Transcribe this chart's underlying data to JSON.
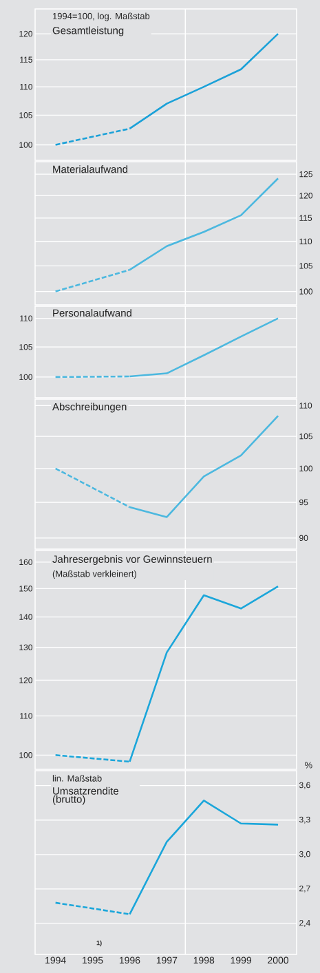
{
  "chart_data": [
    {
      "type": "line",
      "title": "Gesamtleistung",
      "annotations": [
        "1994=100, log. Maßstab"
      ],
      "log": true,
      "grid": "y",
      "tick_labels": "y",
      "xlim": [
        1993.45,
        2000.5
      ],
      "ylim": [
        97.5,
        125
      ],
      "yticks": [
        100,
        105,
        110,
        115,
        120
      ],
      "ref_lines": [
        {
          "axis": "x",
          "value": 1997.5,
          "color": "#ffffff"
        }
      ],
      "series": [
        {
          "color": "#1ba1d8",
          "line_style": "dashed",
          "x": [
            1994,
            1996
          ],
          "values": [
            100,
            102.7
          ]
        },
        {
          "color": "#1ba1d8",
          "line_style": "solid",
          "x": [
            1996,
            1997,
            1998,
            1999,
            2000
          ],
          "values": [
            102.7,
            107,
            110,
            113.2,
            120
          ]
        }
      ]
    },
    {
      "type": "line",
      "title": "Materialaufwand",
      "log": "y2",
      "grid": "y",
      "tick_labels": "y",
      "xlim": [
        1993.45,
        2000.5
      ],
      "y2lim": [
        97.5,
        128
      ],
      "y2ticks": [
        100,
        105,
        110,
        115,
        120,
        125
      ],
      "ref_lines": [
        {
          "axis": "x",
          "value": 1997.5,
          "color": "#ffffff"
        }
      ],
      "series": [
        {
          "color": "#4cb8df",
          "line_style": "dashed",
          "axis": "y2",
          "x": [
            1994,
            1996
          ],
          "values": [
            100,
            104.2
          ]
        },
        {
          "color": "#4cb8df",
          "line_style": "solid",
          "axis": "y2",
          "x": [
            1996,
            1997,
            1998,
            1999,
            2000
          ],
          "values": [
            104.2,
            109,
            112,
            115.6,
            124
          ]
        }
      ]
    },
    {
      "type": "line",
      "title": "Personalaufwand",
      "log": true,
      "grid": "y",
      "tick_labels": "y",
      "xlim": [
        1993.45,
        2000.5
      ],
      "ylim": [
        96.7,
        112.2
      ],
      "yticks": [
        100,
        105,
        110
      ],
      "ref_lines": [
        {
          "axis": "x",
          "value": 1997.5,
          "color": "#ffffff"
        }
      ],
      "series": [
        {
          "color": "#4cb8df",
          "line_style": "dashed",
          "x": [
            1994,
            1996
          ],
          "values": [
            100,
            100.1
          ]
        },
        {
          "color": "#4cb8df",
          "line_style": "solid",
          "x": [
            1996,
            1997,
            1998,
            1999,
            2000
          ],
          "values": [
            100.1,
            100.6,
            103.6,
            106.8,
            110
          ]
        }
      ]
    },
    {
      "type": "line",
      "title": "Abschreibungen",
      "log": "y2",
      "grid": "y",
      "tick_labels": "y",
      "xlim": [
        1993.45,
        2000.5
      ],
      "y2lim": [
        88.5,
        111.1
      ],
      "y2ticks": [
        90,
        95,
        100,
        105,
        110
      ],
      "ref_lines": [
        {
          "axis": "x",
          "value": 1997.5,
          "color": "#ffffff"
        }
      ],
      "series": [
        {
          "color": "#4cb8df",
          "line_style": "dashed",
          "axis": "y2",
          "x": [
            1994,
            1996
          ],
          "values": [
            100,
            94.3
          ]
        },
        {
          "color": "#4cb8df",
          "line_style": "solid",
          "axis": "y2",
          "x": [
            1996,
            1997,
            1998,
            1999,
            2000
          ],
          "values": [
            94.3,
            92.9,
            98.8,
            102,
            108.3
          ]
        }
      ]
    },
    {
      "type": "line",
      "title": "Jahresergebnis vor Gewinnsteuern",
      "subtitle": "(Maßstab verkleinert)",
      "log": true,
      "grid": "y",
      "tick_labels": "y",
      "xlim": [
        1993.45,
        2000.5
      ],
      "ylim": [
        96.6,
        164.6
      ],
      "yticks": [
        100,
        110,
        120,
        130,
        140,
        150,
        160
      ],
      "ref_lines": [
        {
          "axis": "x",
          "value": 1997.5,
          "color": "#ffffff"
        }
      ],
      "series": [
        {
          "color": "#1ba6da",
          "line_style": "dashed",
          "x": [
            1994,
            1996
          ],
          "values": [
            100,
            98.4
          ]
        },
        {
          "color": "#1ba6da",
          "line_style": "solid",
          "x": [
            1996,
            1997,
            1998,
            1999,
            2000
          ],
          "values": [
            98.4,
            128.4,
            147.6,
            142.9,
            150.8
          ]
        }
      ]
    },
    {
      "type": "line",
      "title": "Umsatzrendite (brutto)",
      "y2label": "%",
      "annotations": [
        "lin. Maßstab",
        "1)"
      ],
      "grid": "y",
      "xlim": [
        1993.45,
        2000.5
      ],
      "xticks": [
        1994,
        1995,
        1996,
        1997,
        1998,
        1999,
        2000
      ],
      "y2lim": [
        2.13,
        3.73
      ],
      "y2ticks": [
        {
          "value": 2.4,
          "label": "2,4"
        },
        {
          "value": 2.7,
          "label": "2,7"
        },
        {
          "value": 3.0,
          "label": "3,0"
        },
        {
          "value": 3.3,
          "label": "3,3"
        },
        {
          "value": 3.6,
          "label": "3,6"
        }
      ],
      "ref_lines": [
        {
          "axis": "x",
          "value": 1997.5,
          "color": "#ffffff"
        }
      ],
      "series": [
        {
          "color": "#1ba6da",
          "line_style": "dashed",
          "axis": "y2",
          "x": [
            1994,
            1996
          ],
          "values": [
            2.58,
            2.48
          ]
        },
        {
          "color": "#1ba6da",
          "line_style": "solid",
          "axis": "y2",
          "x": [
            1996,
            1997,
            1998,
            1999,
            2000
          ],
          "values": [
            2.48,
            3.11,
            3.47,
            3.27,
            3.26
          ]
        }
      ]
    }
  ]
}
